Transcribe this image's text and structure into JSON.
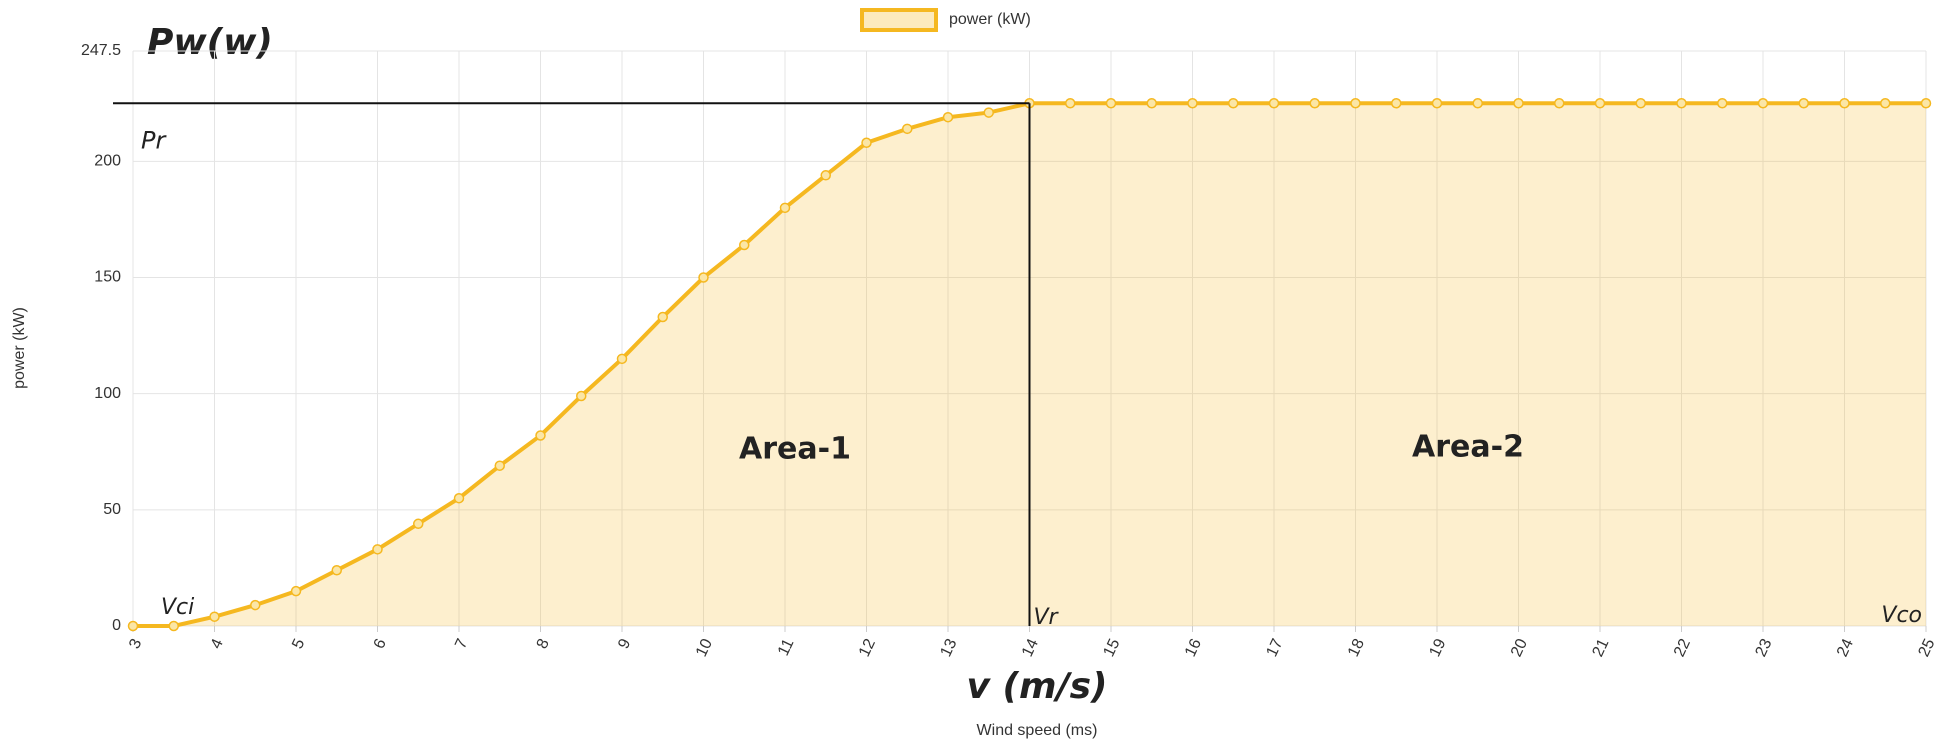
{
  "chart_data": {
    "type": "area",
    "title": "Pw(w)",
    "x_label": "v (m/s)",
    "x_axis_title": "Wind speed (ms)",
    "y_axis_title": "power (kW)",
    "annotations": {
      "rated_power": "Pr",
      "cut_in": "Vci",
      "rated_speed": "Vr",
      "cut_out": "Vco",
      "area_1": "Area-1",
      "area_2": "Area-2"
    },
    "x": [
      3,
      3.5,
      4,
      4.5,
      5,
      5.5,
      6,
      6.5,
      7,
      7.5,
      8,
      8.5,
      9,
      9.5,
      10,
      10.5,
      11,
      11.5,
      12,
      12.5,
      13,
      13.5,
      14,
      14.5,
      15,
      15.5,
      16,
      16.5,
      17,
      17.5,
      18,
      18.5,
      19,
      19.5,
      20,
      20.5,
      21,
      21.5,
      22,
      22.5,
      23,
      23.5,
      24,
      24.5,
      25
    ],
    "series": [
      {
        "name": "power (kW)",
        "color": "#f5b820",
        "values": [
          0,
          0,
          4,
          9,
          15,
          24,
          33,
          44,
          55,
          69,
          82,
          99,
          115,
          133,
          150,
          164,
          180,
          194,
          208,
          214,
          219,
          221,
          225,
          225,
          225,
          225,
          225,
          225,
          225,
          225,
          225,
          225,
          225,
          225,
          225,
          225,
          225,
          225,
          225,
          225,
          225,
          225,
          225,
          225,
          225
        ]
      }
    ],
    "xlim": [
      3,
      25
    ],
    "xticks": [
      3,
      4,
      5,
      6,
      7,
      8,
      9,
      10,
      11,
      12,
      13,
      14,
      15,
      16,
      17,
      18,
      19,
      20,
      21,
      22,
      23,
      24,
      25
    ],
    "ylim": [
      0,
      247.5
    ],
    "yticks": [
      0,
      50,
      100,
      150,
      200,
      247.5
    ],
    "grid": true,
    "legend": "top"
  }
}
